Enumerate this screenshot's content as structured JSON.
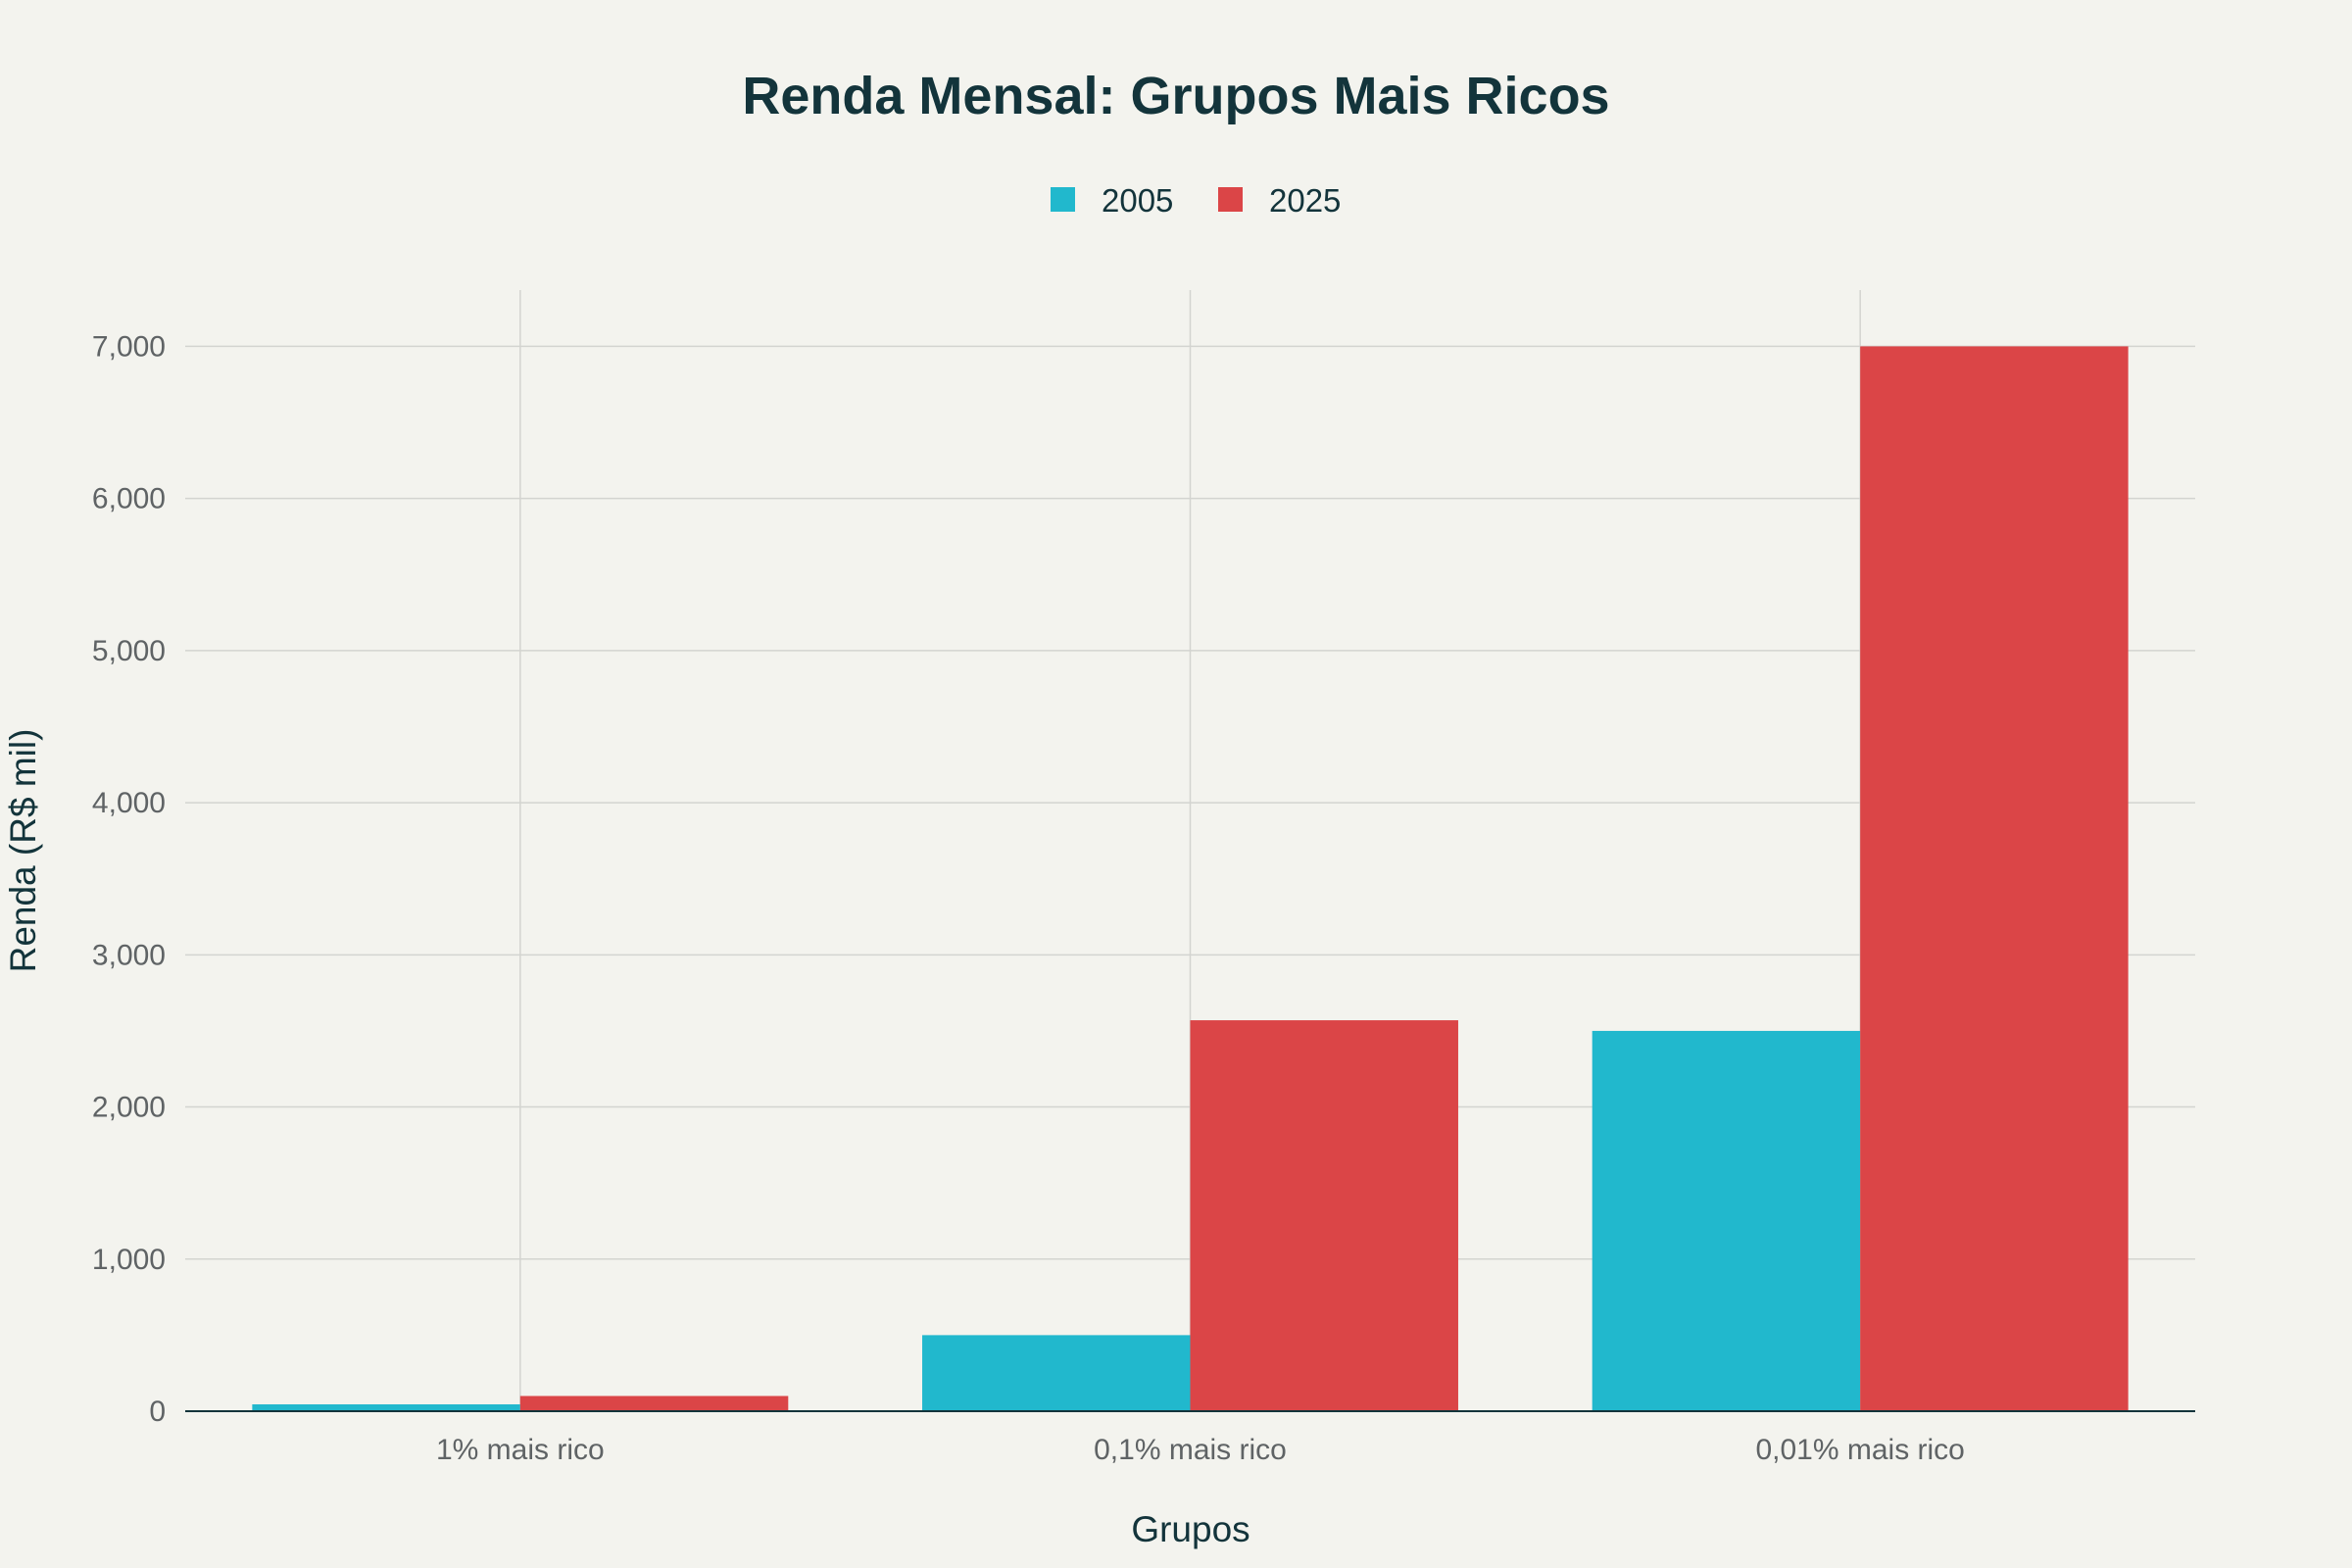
{
  "chart_data": {
    "type": "bar",
    "title": "Renda Mensal: Grupos Mais Ricos",
    "xlabel": "Grupos",
    "ylabel": "Renda (R$ mil)",
    "categories": [
      "1% mais rico",
      "0,1% mais rico",
      "0,01% mais rico"
    ],
    "series": [
      {
        "name": "2005",
        "values": [
          45,
          500,
          2500
        ],
        "color": "#21b8cd"
      },
      {
        "name": "2025",
        "values": [
          100,
          2570,
          7000
        ],
        "color": "#db4547"
      }
    ],
    "ylim": [
      0,
      7370
    ],
    "yticks": [
      0,
      1000,
      2000,
      3000,
      4000,
      5000,
      6000,
      7000
    ],
    "ytick_labels": [
      "0",
      "1,000",
      "2,000",
      "3,000",
      "4,000",
      "5,000",
      "6,000",
      "7,000"
    ],
    "grid": true,
    "legend_position": "top-center"
  }
}
